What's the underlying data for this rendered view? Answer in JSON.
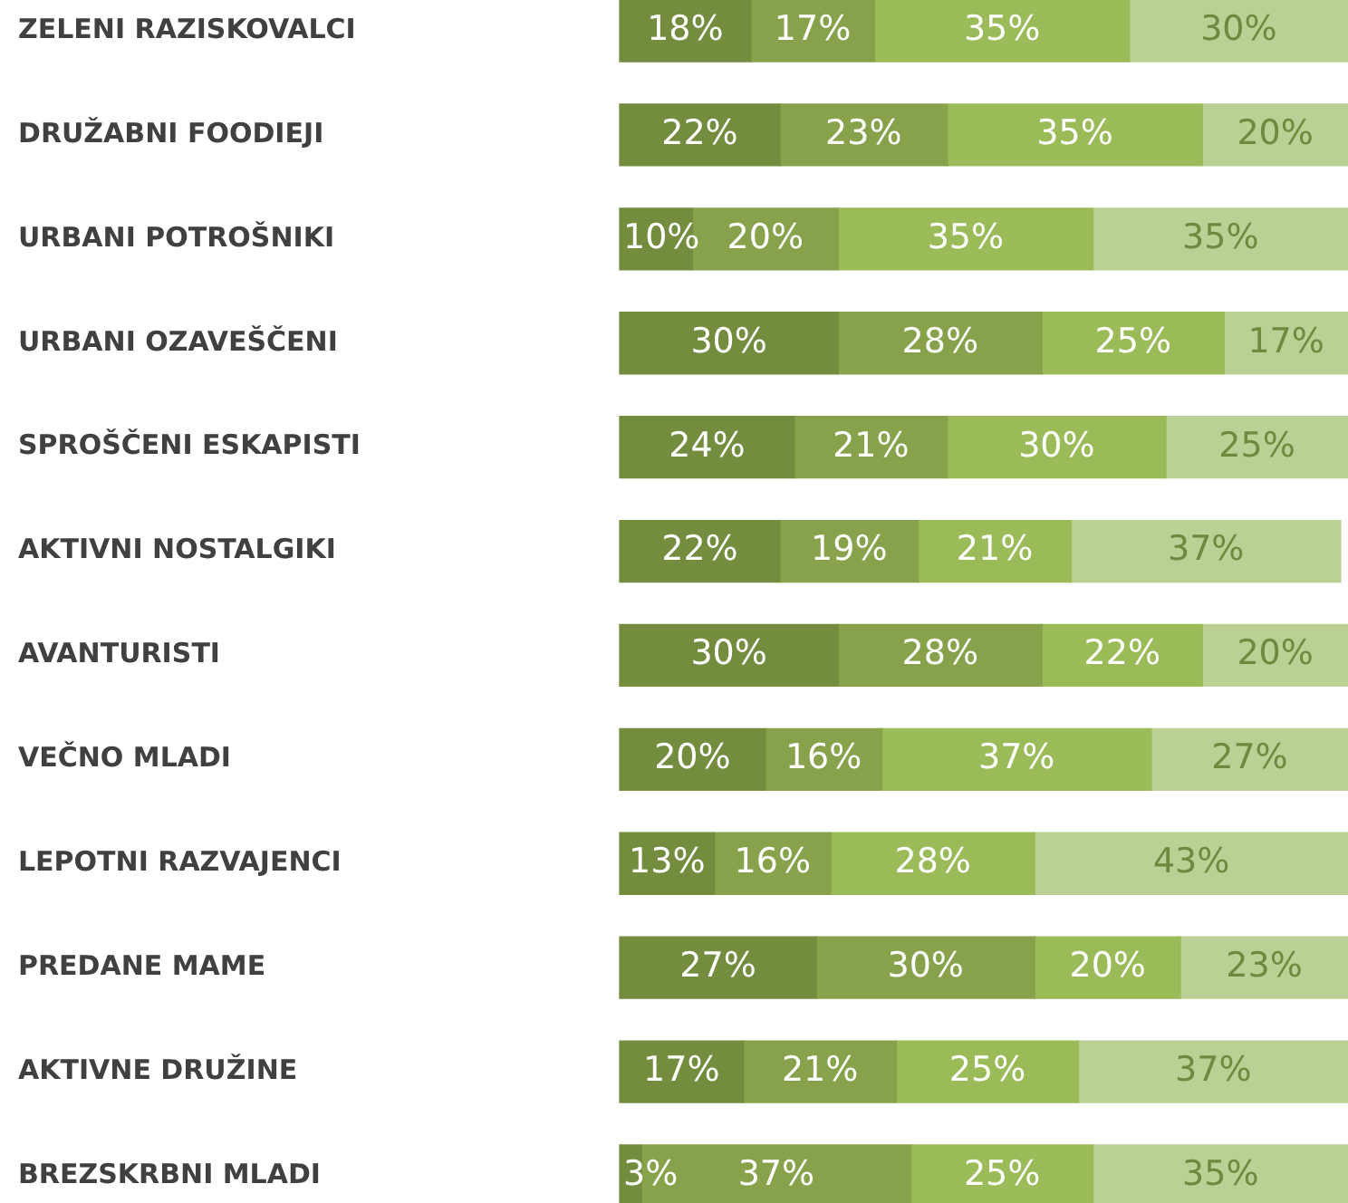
{
  "chart_data": {
    "type": "bar",
    "orientation": "horizontal",
    "stacked": true,
    "categories": [
      "ZELENI RAZISKOVALCI",
      "DRUŽABNI FOODIEJI",
      "URBANI POTROŠNIKI",
      "URBANI OZAVEŠČENI",
      "SPROŠČENI ESKAPISTI",
      "AKTIVNI NOSTALGIKI",
      "AVANTURISTI",
      "VEČNO MLADI",
      "LEPOTNI RAZVAJENCI",
      "PREDANE MAME",
      "AKTIVNE DRUŽINE",
      "BREZSKRBNI MLADI"
    ],
    "xlim": [
      0,
      100
    ],
    "tick_labels": "y",
    "grid": false,
    "legend": false,
    "series": [
      {
        "color": "#738c3e",
        "values": [
          18,
          22,
          10,
          30,
          24,
          22,
          30,
          20,
          13,
          27,
          17,
          3
        ],
        "value_labels": [
          "18%",
          "22%",
          "10%",
          "30%",
          "24%",
          "22%",
          "30%",
          "20%",
          "13%",
          "27%",
          "17%",
          "3%"
        ]
      },
      {
        "color": "#88a24c",
        "values": [
          17,
          23,
          20,
          28,
          21,
          19,
          28,
          16,
          16,
          30,
          21,
          37
        ],
        "value_labels": [
          "17%",
          "23%",
          "20%",
          "28%",
          "21%",
          "19%",
          "28%",
          "16%",
          "16%",
          "30%",
          "21%",
          "37%"
        ]
      },
      {
        "color": "#9bbb59",
        "values": [
          35,
          35,
          35,
          25,
          30,
          21,
          22,
          37,
          28,
          20,
          25,
          25
        ],
        "value_labels": [
          "35%",
          "35%",
          "35%",
          "25%",
          "30%",
          "21%",
          "22%",
          "37%",
          "28%",
          "20%",
          "25%",
          "25%"
        ]
      },
      {
        "color": "#bbd095",
        "values": [
          30,
          20,
          35,
          17,
          25,
          37,
          20,
          27,
          43,
          23,
          37,
          35
        ],
        "value_labels": [
          "30%",
          "20%",
          "35%",
          "17%",
          "25%",
          "37%",
          "20%",
          "27%",
          "43%",
          "23%",
          "37%",
          "35%"
        ]
      }
    ]
  }
}
